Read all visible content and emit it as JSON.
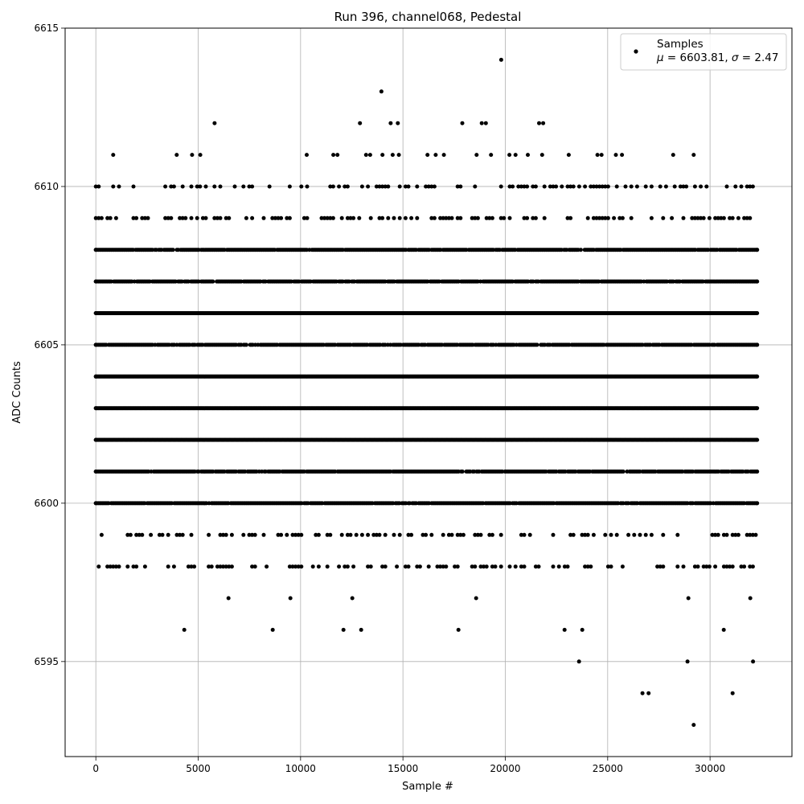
{
  "chart_data": {
    "type": "scatter",
    "title": "Run 396, channel068, Pedestal",
    "xlabel": "Sample #",
    "ylabel": "ADC Counts",
    "xlim": [
      -1500,
      34000
    ],
    "ylim": [
      6592,
      6615
    ],
    "xticks": [
      0,
      5000,
      10000,
      15000,
      20000,
      25000,
      30000
    ],
    "yticks": [
      6595,
      6600,
      6605,
      6610,
      6615
    ],
    "grid": true,
    "legend": {
      "placement": "top-right",
      "label": "Samples",
      "stats": {
        "mu": "6603.81",
        "sigma": "2.47"
      }
    },
    "marker_color": "#000000",
    "series": [
      {
        "name": "Samples",
        "x_range": [
          0,
          32300
        ],
        "levels": [
          {
            "y": 6608,
            "density": "dense"
          },
          {
            "y": 6607,
            "density": "dense"
          },
          {
            "y": 6606,
            "density": "full"
          },
          {
            "y": 6605,
            "density": "dense"
          },
          {
            "y": 6604,
            "density": "full"
          },
          {
            "y": 6603,
            "density": "full"
          },
          {
            "y": 6602,
            "density": "full"
          },
          {
            "y": 6601,
            "density": "dense"
          },
          {
            "y": 6600,
            "density": "dense"
          },
          {
            "y": 6599,
            "density": "medium"
          },
          {
            "y": 6610,
            "density": "medium"
          },
          {
            "y": 6609,
            "density": "medium"
          },
          {
            "y": 6598,
            "density": "medium"
          },
          {
            "y": 6597,
            "density": "sparse"
          },
          {
            "y": 6596,
            "density": "sparse"
          }
        ],
        "points": [
          [
            850,
            6611
          ],
          [
            3950,
            6611
          ],
          [
            4700,
            6611
          ],
          [
            5100,
            6611
          ],
          [
            10300,
            6611
          ],
          [
            11600,
            6611
          ],
          [
            11800,
            6611
          ],
          [
            13200,
            6611
          ],
          [
            13400,
            6611
          ],
          [
            14000,
            6611
          ],
          [
            14500,
            6611
          ],
          [
            14800,
            6611
          ],
          [
            16200,
            6611
          ],
          [
            16600,
            6611
          ],
          [
            17000,
            6611
          ],
          [
            18600,
            6611
          ],
          [
            19300,
            6611
          ],
          [
            20200,
            6611
          ],
          [
            20500,
            6611
          ],
          [
            21100,
            6611
          ],
          [
            21800,
            6611
          ],
          [
            23100,
            6611
          ],
          [
            24500,
            6611
          ],
          [
            24700,
            6611
          ],
          [
            25400,
            6611
          ],
          [
            25700,
            6611
          ],
          [
            28200,
            6611
          ],
          [
            29200,
            6611
          ],
          [
            5800,
            6612
          ],
          [
            12900,
            6612
          ],
          [
            14400,
            6612
          ],
          [
            14750,
            6612
          ],
          [
            17900,
            6612
          ],
          [
            18850,
            6612
          ],
          [
            19050,
            6612
          ],
          [
            21650,
            6612
          ],
          [
            21850,
            6612
          ],
          [
            13950,
            6613
          ],
          [
            19800,
            6614
          ],
          [
            23600,
            6595
          ],
          [
            28900,
            6595
          ],
          [
            32100,
            6595
          ],
          [
            26700,
            6594
          ],
          [
            27000,
            6594
          ],
          [
            31100,
            6594
          ],
          [
            29200,
            6593
          ]
        ]
      }
    ]
  }
}
